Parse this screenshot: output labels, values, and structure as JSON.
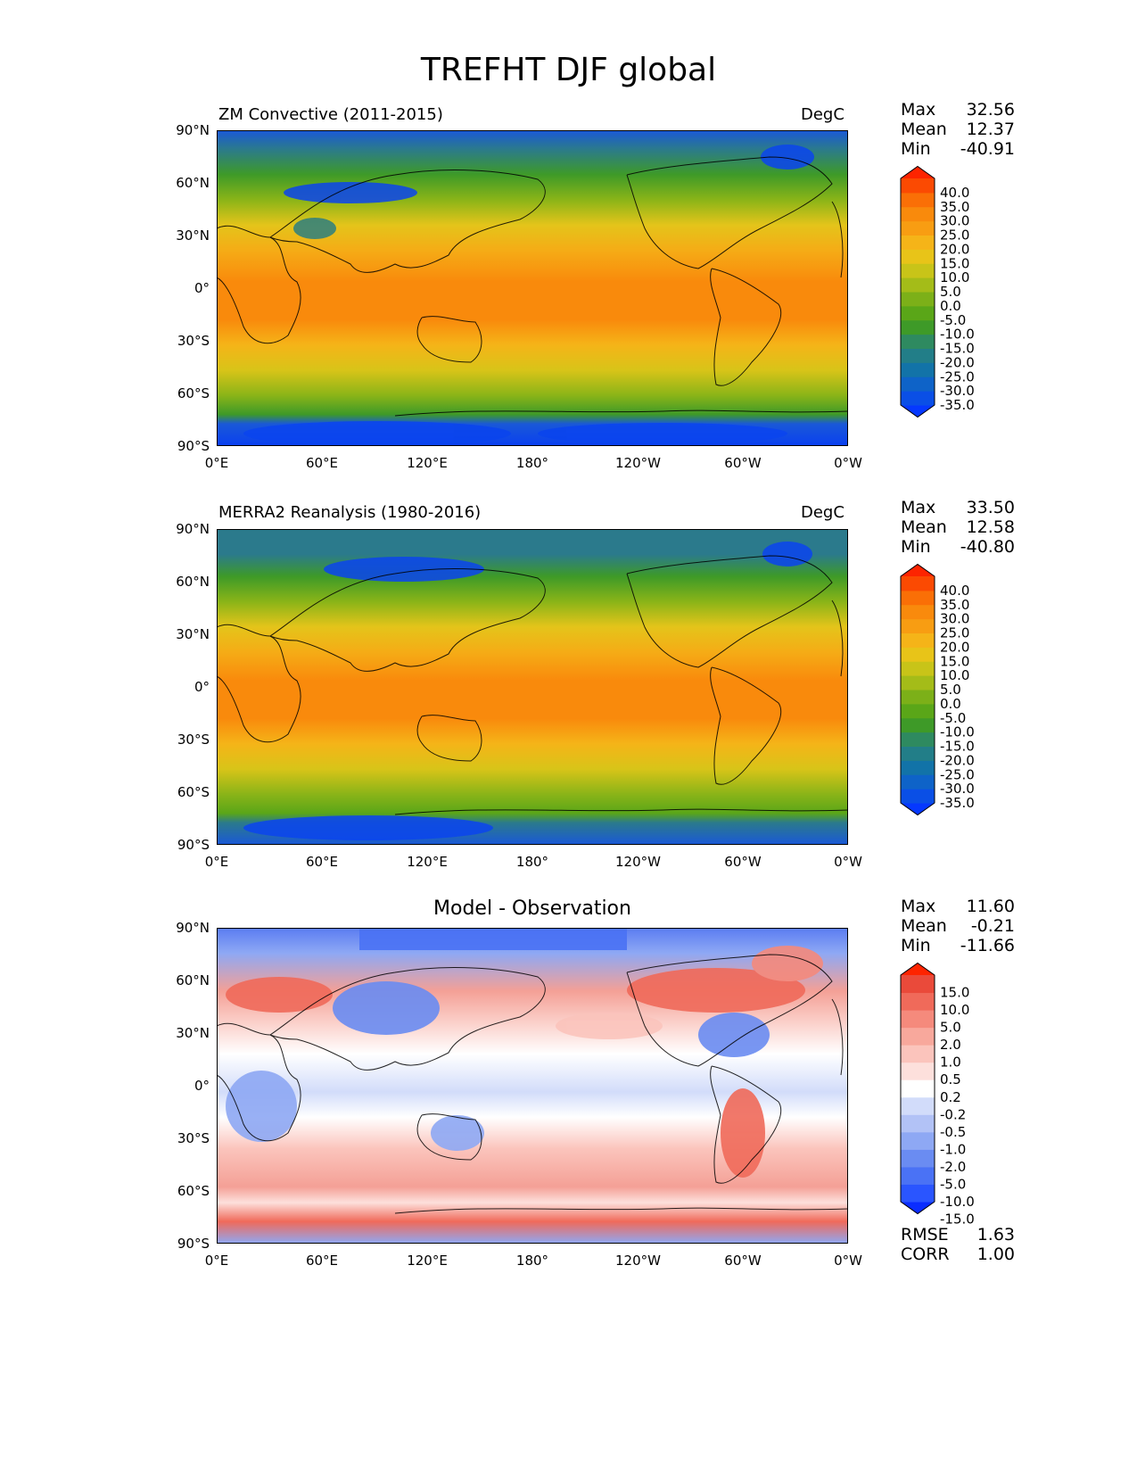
{
  "title": "TREFHT DJF global",
  "panels": [
    {
      "left_title": "ZM Convective (2011-2015)",
      "center_title": "",
      "units": "DegC",
      "stats": [
        [
          "Max",
          "32.56"
        ],
        [
          "Mean",
          "12.37"
        ],
        [
          "Min",
          "-40.91"
        ]
      ],
      "colorbar_labels": [
        "40.0",
        "35.0",
        "30.0",
        "25.0",
        "20.0",
        "15.0",
        "10.0",
        "5.0",
        "0.0",
        "-5.0",
        "-10.0",
        "-15.0",
        "-20.0",
        "-25.0",
        "-30.0",
        "-35.0"
      ],
      "colorbar_colors": [
        "#0538ff",
        "#0a4fe6",
        "#0e63c8",
        "#1273a8",
        "#227e88",
        "#2e8a60",
        "#3e9a28",
        "#5aa618",
        "#7cb018",
        "#a4bc18",
        "#c8c418",
        "#e8c418",
        "#f5b418",
        "#f89d12",
        "#f98a0c",
        "#fa6f06",
        "#fb4a02",
        "#fd2400"
      ],
      "bottom_stats": []
    },
    {
      "left_title": "MERRA2 Reanalysis (1980-2016)",
      "center_title": "",
      "units": "DegC",
      "stats": [
        [
          "Max",
          "33.50"
        ],
        [
          "Mean",
          "12.58"
        ],
        [
          "Min",
          "-40.80"
        ]
      ],
      "colorbar_labels": [
        "40.0",
        "35.0",
        "30.0",
        "25.0",
        "20.0",
        "15.0",
        "10.0",
        "5.0",
        "0.0",
        "-5.0",
        "-10.0",
        "-15.0",
        "-20.0",
        "-25.0",
        "-30.0",
        "-35.0"
      ],
      "colorbar_colors": [
        "#0538ff",
        "#0a4fe6",
        "#0e63c8",
        "#1273a8",
        "#227e88",
        "#2e8a60",
        "#3e9a28",
        "#5aa618",
        "#7cb018",
        "#a4bc18",
        "#c8c418",
        "#e8c418",
        "#f5b418",
        "#f89d12",
        "#f98a0c",
        "#fa6f06",
        "#fb4a02",
        "#fd2400"
      ],
      "bottom_stats": []
    },
    {
      "left_title": "",
      "center_title": "Model - Observation",
      "units": "",
      "stats": [
        [
          "Max",
          "11.60"
        ],
        [
          "Mean",
          "-0.21"
        ],
        [
          "Min",
          "-11.66"
        ]
      ],
      "colorbar_labels": [
        "15.0",
        "10.0",
        "5.0",
        "2.0",
        "1.0",
        "0.5",
        "0.2",
        "-0.2",
        "-0.5",
        "-1.0",
        "-2.0",
        "-5.0",
        "-10.0",
        "-15.0"
      ],
      "colorbar_colors": [
        "#0a2dff",
        "#2a55ff",
        "#4a72f5",
        "#6a8cf2",
        "#8ea8f4",
        "#b2c2f6",
        "#d2dcfa",
        "#ffffff",
        "#fde0dc",
        "#fbc4bc",
        "#f8a89c",
        "#f58a7c",
        "#f06a5a",
        "#ea4a3a",
        "#fd2400"
      ],
      "bottom_stats": [
        [
          "RMSE",
          "1.63"
        ],
        [
          "CORR",
          "1.00"
        ]
      ]
    }
  ],
  "axes": {
    "lat_ticks": [
      "90°N",
      "60°N",
      "30°N",
      "0°",
      "30°S",
      "60°S",
      "90°S"
    ],
    "lon_ticks": [
      "0°E",
      "60°E",
      "120°E",
      "180°",
      "120°W",
      "60°W",
      "0°W"
    ]
  },
  "colors": {
    "warm": "#f98a0c",
    "cold": "#0538ff",
    "diff_warm": "#f4a096",
    "diff_cold": "#5a7cf2"
  }
}
